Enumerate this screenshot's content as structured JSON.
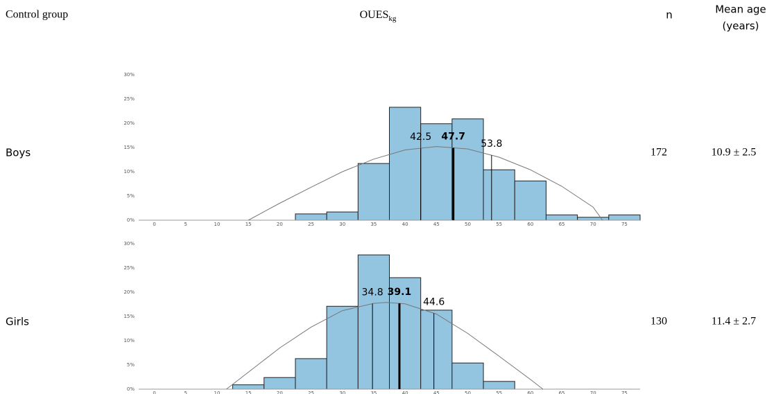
{
  "header": {
    "group": "Control group",
    "measure": "OUES",
    "measure_sub": "kg",
    "n": "n",
    "age": "Mean age",
    "age_unit": "(years)"
  },
  "rows": [
    {
      "label": "Boys",
      "n": 172,
      "age": "10.9 ± 2.5"
    },
    {
      "label": "Girls",
      "n": 130,
      "age": "11.4 ± 2.7"
    }
  ],
  "chart_data": [
    {
      "type": "histogram",
      "color": "#93c4e0",
      "bins": [
        22.5,
        27.5,
        32.5,
        37.5,
        42.5,
        47.5,
        52.5,
        57.5,
        62.5,
        67.5,
        72.5,
        77.5
      ],
      "values": [
        1.3,
        1.7,
        11.7,
        23.3,
        19.9,
        20.9,
        10.4,
        8.1,
        1.1,
        0.6,
        1.1
      ],
      "xlim": [
        -2.5,
        77.5
      ],
      "xticks": [
        0,
        5,
        10,
        15,
        20,
        25,
        30,
        35,
        40,
        45,
        50,
        55,
        60,
        65,
        70,
        75
      ],
      "ylim": [
        0,
        30
      ],
      "yticks": [
        {
          "value": 0,
          "label": "0%"
        },
        {
          "value": 5,
          "label": "5%"
        },
        {
          "value": 10,
          "label": "10%"
        },
        {
          "value": 15,
          "label": "15%"
        },
        {
          "value": 20,
          "label": "20%"
        },
        {
          "value": 25,
          "label": "25%"
        },
        {
          "value": 30,
          "label": "30%"
        }
      ],
      "curve": {
        "x": [
          15,
          20,
          25,
          30,
          35,
          40,
          45,
          50,
          55,
          60,
          65,
          70,
          71.5
        ],
        "values": [
          0,
          3.5,
          6.8,
          10,
          12.6,
          14.5,
          15.2,
          14.7,
          13,
          10.4,
          7,
          2.7,
          0
        ]
      },
      "markers": [
        42.5,
        47.7,
        53.8
      ],
      "bold": [
        false,
        true,
        false
      ]
    },
    {
      "type": "histogram",
      "color": "#93c4e0",
      "bins": [
        12.5,
        17.5,
        22.5,
        27.5,
        32.5,
        37.5,
        42.5,
        47.5,
        52.5,
        57.5
      ],
      "values": [
        0.9,
        2.4,
        6.3,
        17.1,
        27.7,
        23.0,
        16.3,
        5.4,
        1.6
      ],
      "xlim": [
        -2.5,
        77.5
      ],
      "xticks": [
        0,
        5,
        10,
        15,
        20,
        25,
        30,
        35,
        40,
        45,
        50,
        55,
        60,
        65,
        70,
        75
      ],
      "ylim": [
        0,
        30
      ],
      "yticks": [
        {
          "value": 0,
          "label": "0%"
        },
        {
          "value": 5,
          "label": "5%"
        },
        {
          "value": 10,
          "label": "10%"
        },
        {
          "value": 15,
          "label": "15%"
        },
        {
          "value": 20,
          "label": "20%"
        },
        {
          "value": 25,
          "label": "25%"
        },
        {
          "value": 30,
          "label": "30%"
        }
      ],
      "curve": {
        "x": [
          11.5,
          15,
          20,
          25,
          30,
          35,
          37,
          40,
          45,
          50,
          55,
          60,
          62
        ],
        "values": [
          0,
          3.5,
          8.5,
          12.8,
          16.2,
          17.7,
          17.9,
          17.6,
          15.5,
          11.5,
          6.8,
          2,
          0
        ]
      },
      "markers": [
        34.8,
        39.1,
        44.6
      ],
      "bold": [
        false,
        true,
        false
      ]
    }
  ]
}
